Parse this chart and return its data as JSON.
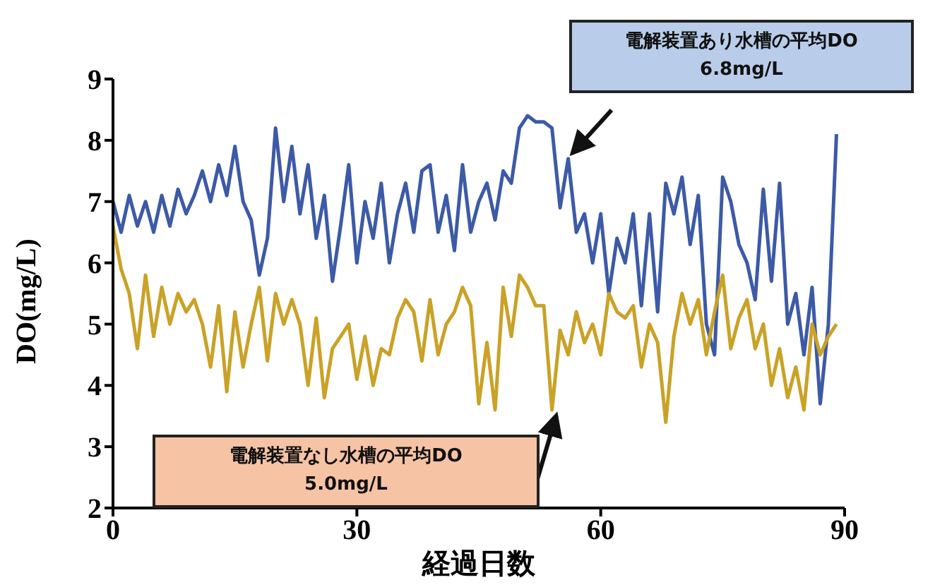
{
  "chart_data": {
    "type": "line",
    "xlabel": "経過日数",
    "ylabel": "DO(mg/L)",
    "x": [
      0,
      1,
      2,
      3,
      4,
      5,
      6,
      7,
      8,
      9,
      10,
      11,
      12,
      13,
      14,
      15,
      16,
      17,
      18,
      19,
      20,
      21,
      22,
      23,
      24,
      25,
      26,
      27,
      28,
      29,
      30,
      31,
      32,
      33,
      34,
      35,
      36,
      37,
      38,
      39,
      40,
      41,
      42,
      43,
      44,
      45,
      46,
      47,
      48,
      49,
      50,
      51,
      52,
      53,
      54,
      55,
      56,
      57,
      58,
      59,
      60,
      61,
      62,
      63,
      64,
      65,
      66,
      67,
      68,
      69,
      70,
      71,
      72,
      73,
      74,
      75,
      76,
      77,
      78,
      79,
      80,
      81,
      82,
      83,
      84,
      85,
      86,
      87,
      88,
      89
    ],
    "series": [
      {
        "color": "#3c5aa6",
        "values": [
          7.0,
          6.5,
          7.1,
          6.6,
          7.0,
          6.5,
          7.1,
          6.6,
          7.2,
          6.8,
          7.1,
          7.5,
          7.0,
          7.6,
          7.1,
          7.9,
          7.0,
          6.7,
          5.8,
          6.4,
          8.2,
          7.0,
          7.9,
          6.8,
          7.6,
          6.4,
          7.1,
          5.7,
          6.6,
          7.6,
          6.0,
          7.0,
          6.4,
          7.3,
          6.0,
          6.8,
          7.3,
          6.5,
          7.5,
          7.6,
          6.5,
          7.1,
          6.2,
          7.6,
          6.5,
          7.0,
          7.3,
          6.7,
          7.5,
          7.3,
          8.2,
          8.4,
          8.3,
          8.3,
          8.2,
          6.9,
          7.7,
          6.5,
          6.8,
          6.0,
          6.8,
          5.5,
          6.4,
          6.0,
          6.8,
          5.3,
          6.8,
          5.2,
          7.3,
          6.8,
          7.4,
          6.3,
          7.1,
          5.0,
          4.5,
          7.4,
          7.0,
          6.3,
          6.0,
          5.4,
          7.2,
          5.7,
          7.3,
          5.0,
          5.5,
          4.5,
          5.6,
          3.7,
          5.0,
          8.1
        ]
      },
      {
        "color": "#c9a227",
        "values": [
          6.6,
          5.9,
          5.5,
          4.6,
          5.8,
          4.8,
          5.6,
          5.0,
          5.5,
          5.2,
          5.4,
          5.0,
          4.3,
          5.3,
          3.9,
          5.2,
          4.3,
          5.0,
          5.6,
          4.4,
          5.5,
          5.0,
          5.4,
          5.0,
          4.0,
          5.1,
          3.8,
          4.6,
          4.8,
          5.0,
          4.1,
          4.8,
          4.0,
          4.6,
          4.5,
          5.1,
          5.4,
          5.2,
          4.4,
          5.4,
          4.5,
          5.0,
          5.2,
          5.6,
          5.3,
          3.7,
          4.7,
          3.6,
          5.6,
          4.8,
          5.8,
          5.6,
          5.3,
          5.3,
          3.6,
          4.9,
          4.5,
          5.2,
          4.7,
          5.0,
          4.5,
          5.5,
          5.2,
          5.1,
          5.3,
          4.3,
          5.0,
          4.7,
          3.4,
          4.8,
          5.5,
          5.0,
          5.4,
          4.5,
          5.2,
          5.8,
          4.6,
          5.1,
          5.4,
          4.6,
          5.0,
          4.0,
          4.6,
          3.8,
          4.3,
          3.6,
          5.0,
          4.5,
          4.8,
          5.0
        ]
      }
    ],
    "xlim": [
      0,
      90
    ],
    "xticks": [
      0,
      30,
      60,
      90
    ],
    "ylim": [
      2,
      9
    ],
    "yticks": [
      2,
      3,
      4,
      5,
      6,
      7,
      8,
      9
    ],
    "grid": false,
    "legend": false,
    "marker": "none",
    "line_style": "solid",
    "annotations": [
      "電解装置あり水槽の平均DO\n6.8mg/L",
      "電解装置なし水槽の平均DO\n5.0mg/L"
    ]
  }
}
